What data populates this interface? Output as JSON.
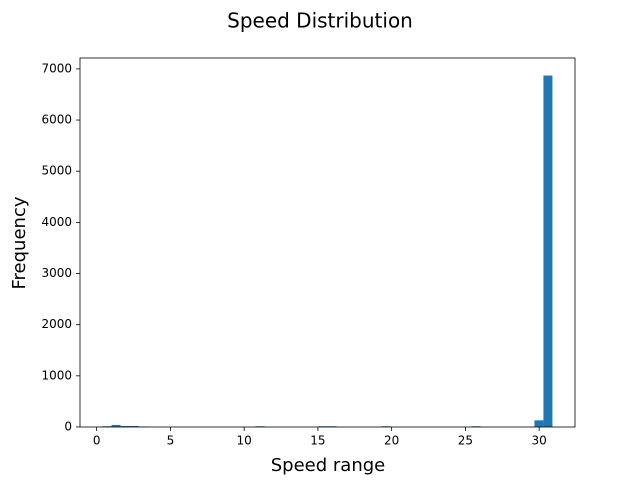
{
  "chart_data": {
    "type": "histogram",
    "title": "Speed Distribution",
    "xlabel": "Speed range",
    "ylabel": "Frequency",
    "bins": [
      0.4,
      1.01,
      1.62,
      2.23,
      2.84,
      3.45,
      4.06,
      4.67,
      5.28,
      5.89,
      6.5,
      7.11,
      7.72,
      8.33,
      8.94,
      9.55,
      10.16,
      10.77,
      11.38,
      11.99,
      12.6,
      13.21,
      13.82,
      14.43,
      15.04,
      15.65,
      16.26,
      16.87,
      17.48,
      18.09,
      18.7,
      19.31,
      19.92,
      20.53,
      21.14,
      21.75,
      22.36,
      22.97,
      23.58,
      24.19,
      24.8,
      25.41,
      26.02,
      26.63,
      27.24,
      27.85,
      28.46,
      29.07,
      29.68,
      30.29,
      30.9
    ],
    "values": [
      15,
      40,
      20,
      20,
      10,
      0,
      0,
      0,
      0,
      0,
      0,
      0,
      0,
      0,
      0,
      0,
      0,
      15,
      0,
      0,
      0,
      0,
      0,
      0,
      15,
      15,
      0,
      0,
      0,
      0,
      0,
      15,
      0,
      0,
      0,
      0,
      0,
      0,
      0,
      0,
      0,
      15,
      0,
      0,
      0,
      0,
      0,
      0,
      130,
      6870
    ],
    "color": "#1f77b4",
    "xlim": [
      -1.13,
      32.43
    ],
    "xticks": [
      0,
      5,
      10,
      15,
      20,
      25,
      30
    ],
    "ylim": [
      0,
      7213
    ],
    "yticks": [
      0,
      1000,
      2000,
      3000,
      4000,
      5000,
      6000,
      7000
    ]
  }
}
